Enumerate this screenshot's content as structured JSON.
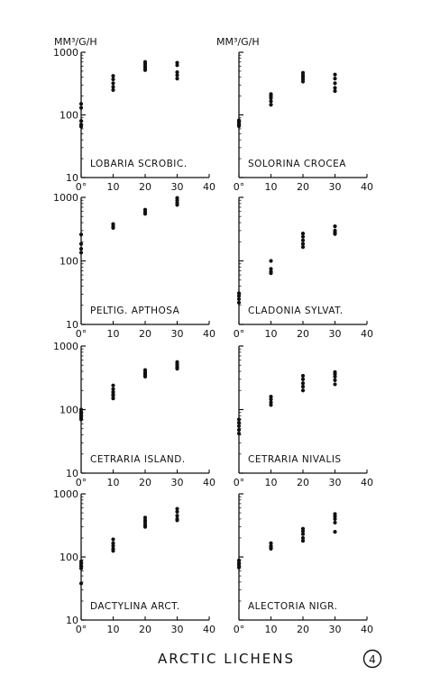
{
  "figure": {
    "title": "ARCTIC LICHENS",
    "figure_number": "4",
    "y_unit_label": "MM³/G/H"
  },
  "chart_data": [
    {
      "type": "scatter",
      "title": "LOBARIA SCROBIC.",
      "yscale": "log",
      "ylim": [
        10,
        1000
      ],
      "xlim": [
        0,
        40
      ],
      "xticks": [
        "0°",
        "10",
        "20",
        "30",
        "40"
      ],
      "yticks": [
        "10",
        "100",
        "1000"
      ],
      "series": [
        {
          "points": [
            [
              0,
              150
            ],
            [
              0,
              130
            ],
            [
              0,
              80
            ],
            [
              0,
              70
            ],
            [
              0,
              65
            ],
            [
              10,
              420
            ],
            [
              10,
              370
            ],
            [
              10,
              320
            ],
            [
              10,
              280
            ],
            [
              10,
              250
            ],
            [
              20,
              700
            ],
            [
              20,
              650
            ],
            [
              20,
              600
            ],
            [
              20,
              560
            ],
            [
              20,
              520
            ],
            [
              30,
              680
            ],
            [
              30,
              620
            ],
            [
              30,
              480
            ],
            [
              30,
              430
            ],
            [
              30,
              380
            ]
          ]
        }
      ]
    },
    {
      "type": "scatter",
      "title": "SOLORINA CROCEA",
      "yscale": "log",
      "ylim": [
        10,
        1000
      ],
      "xlim": [
        0,
        40
      ],
      "xticks": [
        "0°",
        "10",
        "20",
        "30",
        "40"
      ],
      "yticks": [],
      "series": [
        {
          "points": [
            [
              0,
              82
            ],
            [
              0,
              78
            ],
            [
              0,
              74
            ],
            [
              0,
              70
            ],
            [
              0,
              66
            ],
            [
              10,
              215
            ],
            [
              10,
              200
            ],
            [
              10,
              185
            ],
            [
              10,
              165
            ],
            [
              10,
              145
            ],
            [
              20,
              470
            ],
            [
              20,
              430
            ],
            [
              20,
              400
            ],
            [
              20,
              370
            ],
            [
              20,
              340
            ],
            [
              30,
              440
            ],
            [
              30,
              380
            ],
            [
              30,
              320
            ],
            [
              30,
              270
            ],
            [
              30,
              240
            ]
          ]
        }
      ]
    },
    {
      "type": "scatter",
      "title": "PELTIG. APTHOSA",
      "yscale": "log",
      "ylim": [
        10,
        1000
      ],
      "xlim": [
        0,
        40
      ],
      "xticks": [
        "0°",
        "10",
        "20",
        "30",
        "40"
      ],
      "yticks": [
        "10",
        "100",
        "1000"
      ],
      "series": [
        {
          "points": [
            [
              0,
              260
            ],
            [
              0,
              185
            ],
            [
              0,
              155
            ],
            [
              0,
              135
            ],
            [
              10,
              380
            ],
            [
              10,
              350
            ],
            [
              10,
              330
            ],
            [
              20,
              640
            ],
            [
              20,
              590
            ],
            [
              20,
              550
            ],
            [
              30,
              980
            ],
            [
              30,
              900
            ],
            [
              30,
              820
            ],
            [
              30,
              760
            ]
          ]
        }
      ]
    },
    {
      "type": "scatter",
      "title": "CLADONIA SYLVAT.",
      "yscale": "log",
      "ylim": [
        10,
        1000
      ],
      "xlim": [
        0,
        40
      ],
      "xticks": [
        "0°",
        "10",
        "20",
        "30",
        "40"
      ],
      "yticks": [],
      "series": [
        {
          "points": [
            [
              0,
              31
            ],
            [
              0,
              28
            ],
            [
              0,
              25
            ],
            [
              0,
              22
            ],
            [
              10,
              100
            ],
            [
              10,
              75
            ],
            [
              10,
              68
            ],
            [
              10,
              64
            ],
            [
              20,
              270
            ],
            [
              20,
              240
            ],
            [
              20,
              210
            ],
            [
              20,
              185
            ],
            [
              20,
              165
            ],
            [
              30,
              350
            ],
            [
              30,
              300
            ],
            [
              30,
              280
            ],
            [
              30,
              265
            ]
          ]
        }
      ]
    },
    {
      "type": "scatter",
      "title": "CETRARIA ISLAND.",
      "yscale": "log",
      "ylim": [
        10,
        1000
      ],
      "xlim": [
        0,
        40
      ],
      "xticks": [
        "0°",
        "10",
        "20",
        "30",
        "40"
      ],
      "yticks": [
        "10",
        "100",
        "1000"
      ],
      "series": [
        {
          "points": [
            [
              0,
              100
            ],
            [
              0,
              92
            ],
            [
              0,
              86
            ],
            [
              0,
              80
            ],
            [
              0,
              75
            ],
            [
              0,
              70
            ],
            [
              10,
              240
            ],
            [
              10,
              210
            ],
            [
              10,
              190
            ],
            [
              10,
              175
            ],
            [
              10,
              165
            ],
            [
              10,
              150
            ],
            [
              20,
              420
            ],
            [
              20,
              390
            ],
            [
              20,
              370
            ],
            [
              20,
              350
            ],
            [
              20,
              330
            ],
            [
              30,
              560
            ],
            [
              30,
              520
            ],
            [
              30,
              490
            ],
            [
              30,
              460
            ],
            [
              30,
              440
            ]
          ]
        }
      ]
    },
    {
      "type": "scatter",
      "title": "CETRARIA NIVALIS",
      "yscale": "log",
      "ylim": [
        10,
        1000
      ],
      "xlim": [
        0,
        40
      ],
      "xticks": [
        "0°",
        "10",
        "20",
        "30",
        "40"
      ],
      "yticks": [],
      "series": [
        {
          "points": [
            [
              0,
              70
            ],
            [
              0,
              62
            ],
            [
              0,
              55
            ],
            [
              0,
              48
            ],
            [
              0,
              42
            ],
            [
              10,
              160
            ],
            [
              10,
              145
            ],
            [
              10,
              130
            ],
            [
              10,
              118
            ],
            [
              20,
              340
            ],
            [
              20,
              300
            ],
            [
              20,
              260
            ],
            [
              20,
              230
            ],
            [
              20,
              200
            ],
            [
              30,
              390
            ],
            [
              30,
              360
            ],
            [
              30,
              330
            ],
            [
              30,
              290
            ],
            [
              30,
              250
            ]
          ]
        }
      ]
    },
    {
      "type": "scatter",
      "title": "DACTYLINA ARCT.",
      "yscale": "log",
      "ylim": [
        10,
        1000
      ],
      "xlim": [
        0,
        40
      ],
      "xticks": [
        "0°",
        "10",
        "20",
        "30",
        "40"
      ],
      "yticks": [
        "10",
        "100",
        "1000"
      ],
      "series": [
        {
          "points": [
            [
              0,
              85
            ],
            [
              0,
              78
            ],
            [
              0,
              72
            ],
            [
              0,
              66
            ],
            [
              0,
              38
            ],
            [
              10,
              190
            ],
            [
              10,
              165
            ],
            [
              10,
              150
            ],
            [
              10,
              135
            ],
            [
              10,
              125
            ],
            [
              20,
              420
            ],
            [
              20,
              380
            ],
            [
              20,
              350
            ],
            [
              20,
              320
            ],
            [
              20,
              300
            ],
            [
              30,
              580
            ],
            [
              30,
              520
            ],
            [
              30,
              450
            ],
            [
              30,
              400
            ],
            [
              30,
              380
            ]
          ]
        }
      ]
    },
    {
      "type": "scatter",
      "title": "ALECTORIA NIGR.",
      "yscale": "log",
      "ylim": [
        10,
        1000
      ],
      "xlim": [
        0,
        40
      ],
      "xticks": [
        "0°",
        "10",
        "20",
        "30",
        "40"
      ],
      "yticks": [],
      "series": [
        {
          "points": [
            [
              0,
              88
            ],
            [
              0,
              80
            ],
            [
              0,
              74
            ],
            [
              0,
              68
            ],
            [
              10,
              165
            ],
            [
              10,
              150
            ],
            [
              10,
              142
            ],
            [
              10,
              135
            ],
            [
              20,
              280
            ],
            [
              20,
              255
            ],
            [
              20,
              230
            ],
            [
              20,
              200
            ],
            [
              20,
              180
            ],
            [
              30,
              480
            ],
            [
              30,
              440
            ],
            [
              30,
              400
            ],
            [
              30,
              350
            ],
            [
              30,
              250
            ]
          ]
        }
      ]
    }
  ]
}
